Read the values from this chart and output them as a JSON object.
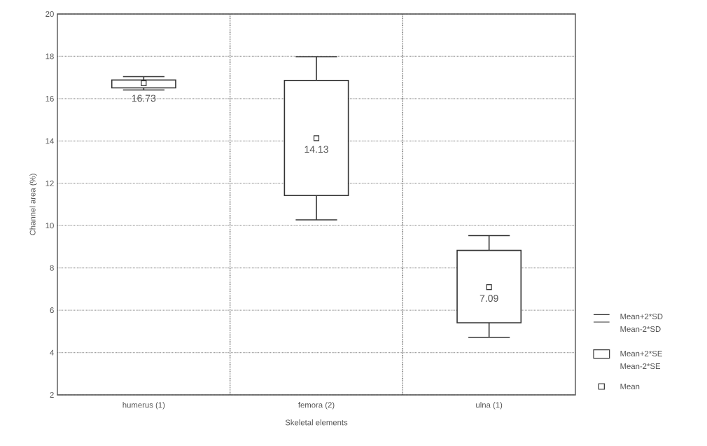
{
  "chart_data": {
    "type": "box",
    "xlabel": "Skeletal elements",
    "ylabel": "Channel area (%)",
    "categories": [
      "humerus (1)",
      "femora (2)",
      "ulna (1)"
    ],
    "boxes": [
      {
        "low": 16.41,
        "q1": 16.51,
        "q3": 16.88,
        "high": 17.04,
        "mean": 16.73
      },
      {
        "low": 10.27,
        "q1": 11.42,
        "q3": 16.86,
        "high": 17.98,
        "mean": 14.13
      },
      {
        "low": 4.72,
        "q1": 5.41,
        "q3": 8.83,
        "high": 9.53,
        "mean": 7.09
      }
    ],
    "value_labels": [
      "16.73",
      "14.13",
      "7.09"
    ],
    "color": "#333333",
    "ylim": [
      2,
      20
    ],
    "yticks": [
      2,
      4,
      6,
      8,
      10,
      12,
      14,
      16,
      18,
      20
    ],
    "grid": true,
    "marker": "square",
    "annotations": [
      "Mean+2*SD",
      "Mean-2*SD",
      "Mean+2*SE",
      "Mean-2*SE",
      "Mean"
    ]
  }
}
